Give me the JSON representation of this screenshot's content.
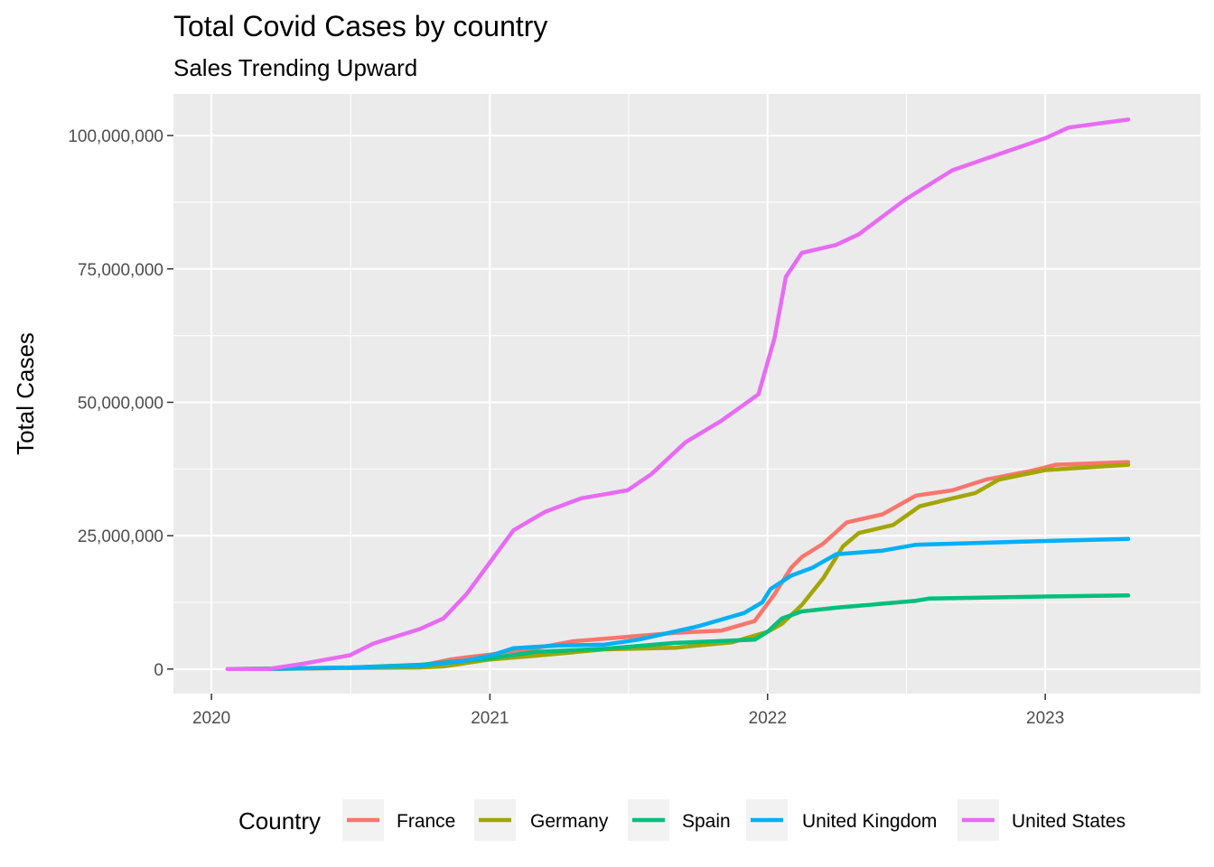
{
  "chart_data": {
    "type": "line",
    "title": "Total Covid Cases by country",
    "subtitle": "Sales Trending Upward",
    "xlabel": "",
    "ylabel": "Total Cases",
    "x_ticks": [
      "2020",
      "2021",
      "2022",
      "2023"
    ],
    "y_ticks": [
      "0",
      "25,000,000",
      "50,000,000",
      "75,000,000",
      "100,000,000"
    ],
    "xlim": [
      "2019-11-12",
      "2023-07-24"
    ],
    "ylim": [
      -4600000,
      107800000
    ],
    "grid": true,
    "legend": {
      "title": "Country",
      "position": "bottom"
    },
    "series": [
      {
        "name": "France",
        "color": "#F8766D",
        "points": [
          [
            "2020-01-24",
            0
          ],
          [
            "2020-04-01",
            50000
          ],
          [
            "2020-07-01",
            200000
          ],
          [
            "2020-10-01",
            600000
          ],
          [
            "2020-11-10",
            1800000
          ],
          [
            "2020-12-01",
            2200000
          ],
          [
            "2021-01-01",
            2700000
          ],
          [
            "2021-03-01",
            3900000
          ],
          [
            "2021-04-20",
            5200000
          ],
          [
            "2021-06-01",
            5700000
          ],
          [
            "2021-09-01",
            6800000
          ],
          [
            "2021-11-01",
            7200000
          ],
          [
            "2021-12-15",
            9000000
          ],
          [
            "2022-01-10",
            14000000
          ],
          [
            "2022-02-01",
            19000000
          ],
          [
            "2022-02-15",
            21000000
          ],
          [
            "2022-03-15",
            23500000
          ],
          [
            "2022-04-15",
            27500000
          ],
          [
            "2022-06-01",
            29000000
          ],
          [
            "2022-07-15",
            32500000
          ],
          [
            "2022-09-01",
            33500000
          ],
          [
            "2022-10-15",
            35500000
          ],
          [
            "2022-12-15",
            37200000
          ],
          [
            "2023-01-15",
            38300000
          ],
          [
            "2023-04-20",
            38800000
          ]
        ]
      },
      {
        "name": "Germany",
        "color": "#A3A500",
        "points": [
          [
            "2020-01-27",
            0
          ],
          [
            "2020-04-01",
            50000
          ],
          [
            "2020-07-01",
            200000
          ],
          [
            "2020-10-01",
            300000
          ],
          [
            "2020-11-01",
            500000
          ],
          [
            "2021-01-01",
            1800000
          ],
          [
            "2021-03-01",
            2500000
          ],
          [
            "2021-06-01",
            3700000
          ],
          [
            "2021-09-01",
            4000000
          ],
          [
            "2021-11-15",
            5000000
          ],
          [
            "2022-01-01",
            7000000
          ],
          [
            "2022-01-20",
            8500000
          ],
          [
            "2022-02-15",
            12000000
          ],
          [
            "2022-03-15",
            17000000
          ],
          [
            "2022-04-10",
            23000000
          ],
          [
            "2022-05-01",
            25500000
          ],
          [
            "2022-06-15",
            27000000
          ],
          [
            "2022-07-20",
            30500000
          ],
          [
            "2022-09-01",
            32000000
          ],
          [
            "2022-10-01",
            33000000
          ],
          [
            "2022-11-01",
            35500000
          ],
          [
            "2023-01-01",
            37300000
          ],
          [
            "2023-04-20",
            38300000
          ]
        ]
      },
      {
        "name": "Spain",
        "color": "#00BF7D",
        "points": [
          [
            "2020-02-01",
            0
          ],
          [
            "2020-04-01",
            100000
          ],
          [
            "2020-07-01",
            300000
          ],
          [
            "2020-10-01",
            800000
          ],
          [
            "2021-01-01",
            2000000
          ],
          [
            "2021-03-01",
            3200000
          ],
          [
            "2021-06-01",
            3800000
          ],
          [
            "2021-09-01",
            4900000
          ],
          [
            "2021-12-15",
            5500000
          ],
          [
            "2022-01-01",
            7000000
          ],
          [
            "2022-01-20",
            9500000
          ],
          [
            "2022-02-15",
            10800000
          ],
          [
            "2022-04-01",
            11500000
          ],
          [
            "2022-07-15",
            12800000
          ],
          [
            "2022-08-01",
            13200000
          ],
          [
            "2023-01-01",
            13600000
          ],
          [
            "2023-04-20",
            13800000
          ]
        ]
      },
      {
        "name": "United Kingdom",
        "color": "#00B0F6",
        "points": [
          [
            "2020-01-31",
            0
          ],
          [
            "2020-04-01",
            50000
          ],
          [
            "2020-07-01",
            300000
          ],
          [
            "2020-10-01",
            600000
          ],
          [
            "2020-12-01",
            1600000
          ],
          [
            "2021-01-01",
            2500000
          ],
          [
            "2021-02-01",
            3900000
          ],
          [
            "2021-04-01",
            4400000
          ],
          [
            "2021-06-01",
            4600000
          ],
          [
            "2021-07-15",
            5500000
          ],
          [
            "2021-10-01",
            8000000
          ],
          [
            "2021-12-01",
            10500000
          ],
          [
            "2021-12-25",
            12500000
          ],
          [
            "2022-01-05",
            15000000
          ],
          [
            "2022-02-01",
            17500000
          ],
          [
            "2022-03-01",
            19000000
          ],
          [
            "2022-04-01",
            21500000
          ],
          [
            "2022-06-01",
            22200000
          ],
          [
            "2022-07-15",
            23300000
          ],
          [
            "2023-01-01",
            24000000
          ],
          [
            "2023-04-20",
            24400000
          ]
        ]
      },
      {
        "name": "United States",
        "color": "#E76BF3",
        "points": [
          [
            "2020-01-22",
            0
          ],
          [
            "2020-03-15",
            10000
          ],
          [
            "2020-05-01",
            1000000
          ],
          [
            "2020-07-01",
            2600000
          ],
          [
            "2020-08-01",
            4800000
          ],
          [
            "2020-10-01",
            7500000
          ],
          [
            "2020-11-01",
            9500000
          ],
          [
            "2020-12-01",
            14000000
          ],
          [
            "2021-01-01",
            20000000
          ],
          [
            "2021-02-01",
            26000000
          ],
          [
            "2021-03-15",
            29500000
          ],
          [
            "2021-05-01",
            32000000
          ],
          [
            "2021-07-01",
            33500000
          ],
          [
            "2021-08-01",
            36500000
          ],
          [
            "2021-09-15",
            42500000
          ],
          [
            "2021-11-01",
            46500000
          ],
          [
            "2021-12-20",
            51500000
          ],
          [
            "2022-01-10",
            62000000
          ],
          [
            "2022-01-25",
            73500000
          ],
          [
            "2022-02-15",
            78000000
          ],
          [
            "2022-04-01",
            79500000
          ],
          [
            "2022-05-01",
            81500000
          ],
          [
            "2022-07-01",
            88000000
          ],
          [
            "2022-09-01",
            93500000
          ],
          [
            "2022-11-01",
            96500000
          ],
          [
            "2023-01-01",
            99500000
          ],
          [
            "2023-02-01",
            101500000
          ],
          [
            "2023-04-20",
            103000000
          ]
        ]
      }
    ]
  }
}
